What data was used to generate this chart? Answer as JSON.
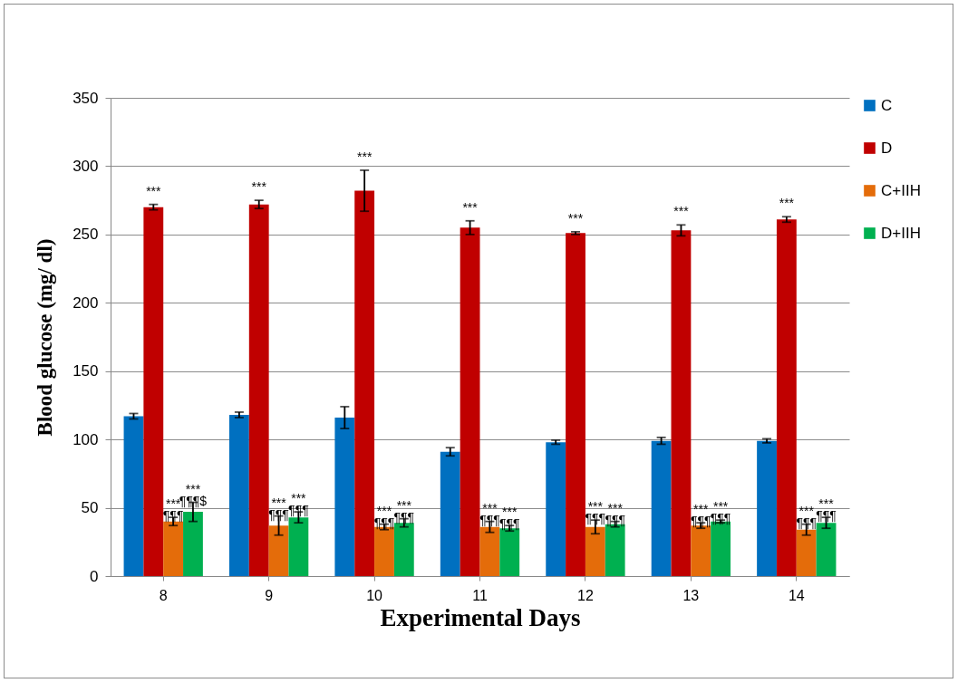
{
  "chart_data": {
    "type": "bar",
    "xlabel": "Experimental Days",
    "ylabel": "Blood glucose (mg/ dl)",
    "categories": [
      "8",
      "9",
      "10",
      "11",
      "12",
      "13",
      "14"
    ],
    "series": [
      {
        "name": "C",
        "color": "#0070c0",
        "values": [
          117,
          118,
          116,
          91,
          98,
          99,
          99
        ],
        "errors": [
          2,
          2,
          8,
          3,
          1.5,
          2.5,
          1.5
        ]
      },
      {
        "name": "D",
        "color": "#c00000",
        "values": [
          270,
          272,
          282,
          255,
          251,
          253,
          261
        ],
        "errors": [
          2,
          3,
          15,
          5,
          1,
          4,
          2
        ]
      },
      {
        "name": "C+IIH",
        "color": "#e46c0a",
        "values": [
          40,
          37,
          36,
          36,
          36,
          37,
          34
        ],
        "errors": [
          3,
          7,
          2,
          4,
          5,
          2,
          4
        ]
      },
      {
        "name": "D+IIH",
        "color": "#00b050",
        "values": [
          47,
          43,
          39,
          35,
          38,
          40,
          39
        ],
        "errors": [
          7,
          4,
          3,
          2,
          2,
          1,
          4
        ]
      }
    ],
    "ylim": [
      0,
      350
    ],
    "yticks": [
      0,
      50,
      100,
      150,
      200,
      250,
      300,
      350
    ],
    "grid": "y",
    "legend": "right",
    "annotations": [
      {
        "text": "***",
        "x": "8",
        "y": 270
      },
      {
        "text": "***\n¶¶¶",
        "x": "8",
        "y": 40
      },
      {
        "text": "***\n¶¶¶$",
        "x": "8",
        "y": 47
      },
      {
        "text": "***",
        "x": "9",
        "y": 272
      },
      {
        "text": "***\n¶¶¶",
        "x": "9",
        "y": 37
      },
      {
        "text": "***\n¶¶¶",
        "x": "9",
        "y": 43
      },
      {
        "text": "***",
        "x": "10",
        "y": 282
      },
      {
        "text": "***\n¶¶¶",
        "x": "10",
        "y": 36
      },
      {
        "text": "***\n¶¶¶",
        "x": "10",
        "y": 39
      },
      {
        "text": "***",
        "x": "11",
        "y": 255
      },
      {
        "text": "***\n¶¶¶",
        "x": "11",
        "y": 36
      },
      {
        "text": "***\n¶¶¶",
        "x": "11",
        "y": 35
      },
      {
        "text": "***",
        "x": "12",
        "y": 251
      },
      {
        "text": "***\n¶¶¶",
        "x": "12",
        "y": 36
      },
      {
        "text": "***\n¶¶¶",
        "x": "12",
        "y": 38
      },
      {
        "text": "***",
        "x": "13",
        "y": 253
      },
      {
        "text": "***\n¶¶¶",
        "x": "13",
        "y": 37
      },
      {
        "text": "***\n¶¶¶",
        "x": "13",
        "y": 40
      },
      {
        "text": "***",
        "x": "14",
        "y": 261
      },
      {
        "text": "***\n¶¶¶",
        "x": "14",
        "y": 34
      },
      {
        "text": "***\n¶¶¶",
        "x": "14",
        "y": 39
      }
    ]
  }
}
